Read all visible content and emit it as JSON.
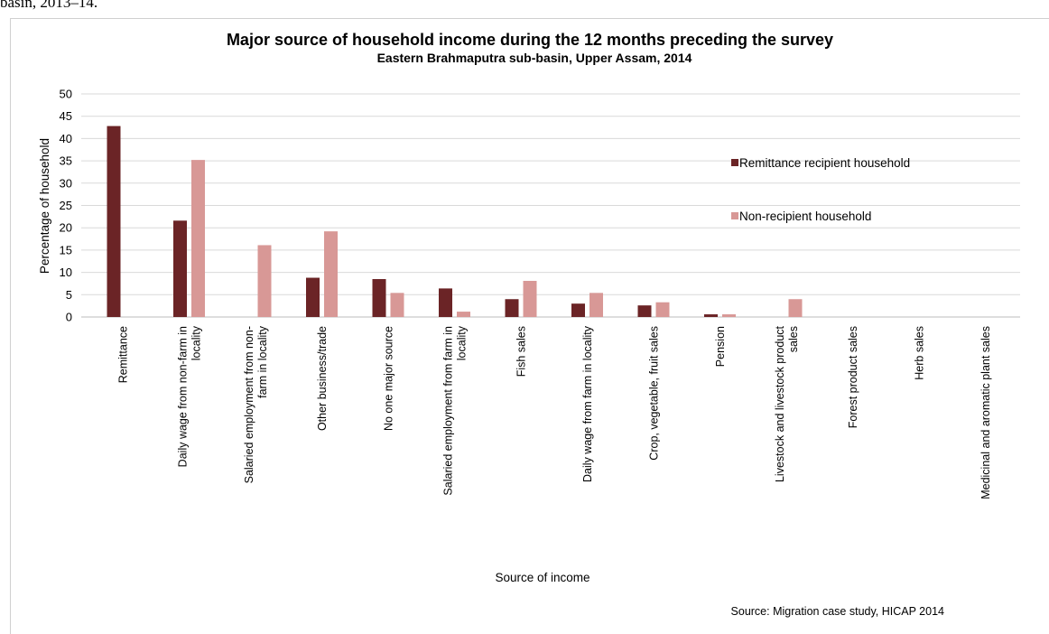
{
  "page": {
    "top_fragment": "basin, 2013–14."
  },
  "chart_data": {
    "type": "bar",
    "title": "Major source of household income during the 12 months preceding the survey",
    "subtitle": "Eastern Brahmaputra sub-basin, Upper Assam, 2014",
    "xlabel": "Source of income",
    "ylabel": "Percentage of household",
    "ylim": [
      0,
      50
    ],
    "yticks": [
      0,
      5,
      10,
      15,
      20,
      25,
      30,
      35,
      40,
      45,
      50
    ],
    "grid": true,
    "legend_position": "right",
    "categories": [
      [
        "Remittance"
      ],
      [
        "Daily wage from non-farm in",
        "locality"
      ],
      [
        "Salaried employment from non-",
        "farm in locality"
      ],
      [
        "Other business/trade"
      ],
      [
        "No one major source"
      ],
      [
        "Salaried employment from farm in",
        "locality"
      ],
      [
        "Fish sales"
      ],
      [
        "Daily wage from farm in locality"
      ],
      [
        "Crop, vegetable, fruit sales"
      ],
      [
        "Pension"
      ],
      [
        "Livestock and livestock product",
        "sales"
      ],
      [
        "Forest product sales"
      ],
      [
        "Herb sales"
      ],
      [
        "Medicinal and aromatic plant sales"
      ]
    ],
    "series": [
      {
        "name": "Remittance recipient household",
        "color": "#6b2426",
        "values": [
          42.8,
          21.6,
          0,
          8.8,
          8.5,
          6.4,
          4.0,
          3.0,
          2.6,
          0.6,
          0,
          0,
          0,
          0
        ]
      },
      {
        "name": "Non-recipient household",
        "color": "#d89896",
        "values": [
          0,
          35.2,
          16.1,
          19.2,
          5.4,
          1.2,
          8.1,
          5.4,
          3.3,
          0.6,
          4.0,
          0,
          0,
          0
        ]
      }
    ],
    "source": "Source: Migration case study, HICAP 2014"
  }
}
